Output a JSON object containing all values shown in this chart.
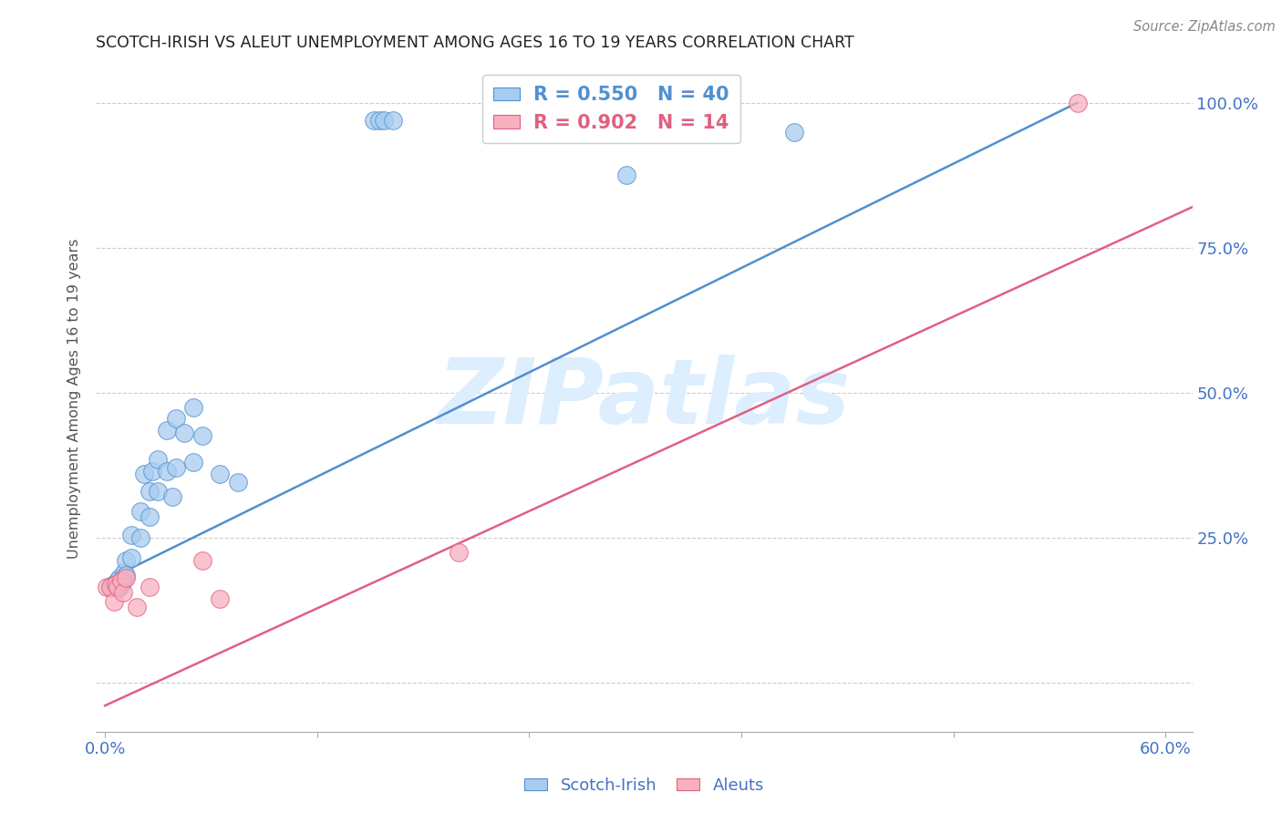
{
  "title": "SCOTCH-IRISH VS ALEUT UNEMPLOYMENT AMONG AGES 16 TO 19 YEARS CORRELATION CHART",
  "source": "Source: ZipAtlas.com",
  "ylabel": "Unemployment Among Ages 16 to 19 years",
  "xlim": [
    -0.005,
    0.615
  ],
  "ylim": [
    -0.085,
    1.065
  ],
  "xticks": [
    0.0,
    0.12,
    0.24,
    0.36,
    0.48,
    0.6
  ],
  "xtick_labels": [
    "0.0%",
    "",
    "",
    "",
    "",
    "60.0%"
  ],
  "yticks": [
    0.0,
    0.25,
    0.5,
    0.75,
    1.0
  ],
  "ytick_labels_right": [
    "",
    "25.0%",
    "50.0%",
    "75.0%",
    "100.0%"
  ],
  "blue_face": "#a8ccf0",
  "blue_edge": "#5090d0",
  "pink_face": "#f8b0c0",
  "pink_edge": "#e06080",
  "blue_line_color": "#5090d0",
  "pink_line_color": "#e06080",
  "grid_color": "#cccccc",
  "label_color": "#4472c4",
  "title_color": "#222222",
  "source_color": "#888888",
  "watermark_text": "ZIPatlas",
  "watermark_color": "#ddeeff",
  "legend_r_blue": "R = 0.550",
  "legend_n_blue": "N = 40",
  "legend_r_pink": "R = 0.902",
  "legend_n_pink": "N = 14",
  "scotch_x": [
    0.003,
    0.004,
    0.005,
    0.006,
    0.007,
    0.008,
    0.008,
    0.009,
    0.01,
    0.01,
    0.011,
    0.012,
    0.012,
    0.015,
    0.015,
    0.02,
    0.02,
    0.022,
    0.025,
    0.025,
    0.027,
    0.03,
    0.03,
    0.035,
    0.035,
    0.038,
    0.04,
    0.04,
    0.045,
    0.05,
    0.05,
    0.055,
    0.065,
    0.075,
    0.152,
    0.155,
    0.158,
    0.163,
    0.295,
    0.39
  ],
  "scotch_y": [
    0.165,
    0.165,
    0.17,
    0.17,
    0.175,
    0.165,
    0.18,
    0.17,
    0.175,
    0.18,
    0.19,
    0.21,
    0.185,
    0.215,
    0.255,
    0.25,
    0.295,
    0.36,
    0.285,
    0.33,
    0.365,
    0.33,
    0.385,
    0.365,
    0.435,
    0.32,
    0.37,
    0.455,
    0.43,
    0.38,
    0.475,
    0.425,
    0.36,
    0.345,
    0.97,
    0.97,
    0.97,
    0.97,
    0.875,
    0.95
  ],
  "aleut_x": [
    0.001,
    0.003,
    0.005,
    0.006,
    0.007,
    0.009,
    0.01,
    0.012,
    0.018,
    0.025,
    0.055,
    0.065,
    0.2,
    0.55
  ],
  "aleut_y": [
    0.165,
    0.165,
    0.14,
    0.17,
    0.165,
    0.175,
    0.155,
    0.18,
    0.13,
    0.165,
    0.21,
    0.145,
    0.225,
    1.0
  ],
  "blue_line_x": [
    0.0,
    0.55
  ],
  "blue_line_y": [
    0.175,
    1.0
  ],
  "pink_line_x": [
    0.0,
    0.615
  ],
  "pink_line_y": [
    -0.04,
    0.82
  ]
}
